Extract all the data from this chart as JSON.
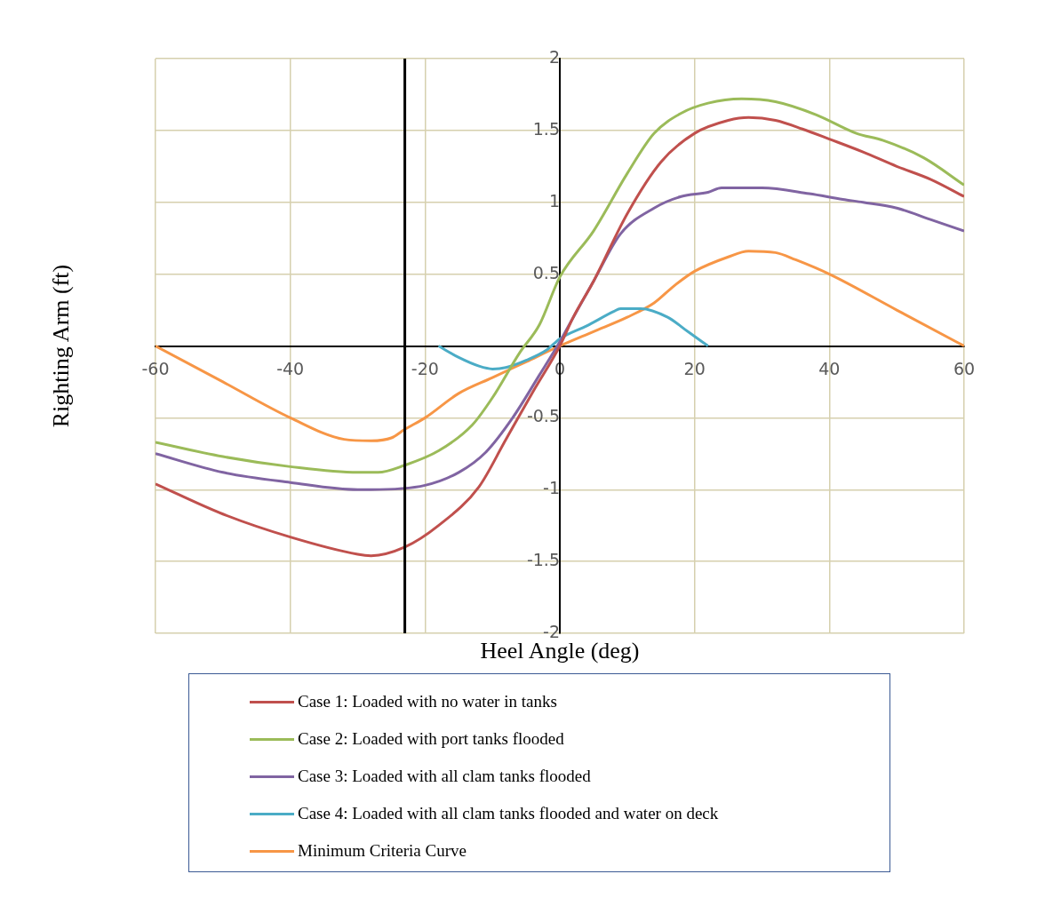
{
  "chart_data": {
    "type": "line",
    "xlabel": "Heel Angle (deg)",
    "ylabel": "Righting Arm (ft)",
    "xlim": [
      -60,
      60
    ],
    "xticks": [
      -60,
      -40,
      -20,
      0,
      20,
      40,
      60
    ],
    "ylim": [
      -2,
      2
    ],
    "yticks": [
      -2,
      -1.5,
      -1,
      -0.5,
      {
        "value": 0,
        "label": null
      },
      0.5,
      1,
      1.5,
      2
    ],
    "grid": true,
    "legend": "bottom",
    "marker": "none",
    "line_style": "solid",
    "ref_lines": [
      {
        "axis": "x",
        "value": -23,
        "color": "#000000"
      }
    ],
    "series": [
      {
        "name": "Case 1: Loaded with no water in tanks",
        "color": "#c0504d",
        "x": [
          -60,
          -50,
          -40,
          -30,
          -28,
          -23,
          -18,
          -12,
          -8,
          -4,
          0,
          2,
          5,
          10,
          15,
          20,
          25,
          28,
          32,
          36,
          40,
          45,
          50,
          55,
          60
        ],
        "values": [
          -0.96,
          -1.17,
          -1.33,
          -1.45,
          -1.46,
          -1.4,
          -1.25,
          -0.98,
          -0.65,
          -0.32,
          0,
          0.2,
          0.45,
          0.92,
          1.28,
          1.48,
          1.57,
          1.59,
          1.57,
          1.51,
          1.44,
          1.35,
          1.25,
          1.16,
          1.04
        ]
      },
      {
        "name": "Case 2: Loaded with port tanks flooded",
        "color": "#9bbb59",
        "x": [
          -60,
          -50,
          -40,
          -30,
          -27,
          -23,
          -18,
          -13,
          -10,
          -6,
          -3,
          0,
          5,
          10,
          14,
          18,
          22,
          27,
          32,
          38,
          44,
          48,
          54,
          60
        ],
        "values": [
          -0.67,
          -0.77,
          -0.84,
          -0.88,
          -0.88,
          -0.83,
          -0.73,
          -0.55,
          -0.36,
          -0.05,
          0.15,
          0.48,
          0.8,
          1.2,
          1.48,
          1.62,
          1.69,
          1.72,
          1.7,
          1.61,
          1.48,
          1.43,
          1.31,
          1.12
        ]
      },
      {
        "name": "Case 3: Loaded with all clam tanks flooded",
        "color": "#8064a2",
        "x": [
          -60,
          -50,
          -40,
          -30,
          -28,
          -20,
          -15,
          -11,
          -7,
          -3,
          0,
          2,
          5,
          9,
          14,
          18,
          22,
          24,
          30,
          37,
          42,
          45,
          50,
          55,
          60
        ],
        "values": [
          -0.75,
          -0.88,
          -0.95,
          -1,
          -1,
          -0.97,
          -0.88,
          -0.74,
          -0.5,
          -0.2,
          0.03,
          0.2,
          0.45,
          0.78,
          0.96,
          1.04,
          1.07,
          1.1,
          1.1,
          1.06,
          1.02,
          1,
          0.96,
          0.88,
          0.8
        ]
      },
      {
        "name": "Case 4: Loaded with all clam tanks flooded and water on deck",
        "color": "#4bacc6",
        "x": [
          -18,
          -15,
          -12,
          -10,
          -8,
          -5,
          -2,
          0,
          4,
          8,
          9,
          12,
          16,
          19,
          22
        ],
        "values": [
          0,
          -0.08,
          -0.14,
          -0.16,
          -0.15,
          -0.1,
          -0.03,
          0.05,
          0.14,
          0.24,
          0.26,
          0.26,
          0.2,
          0.1,
          0
        ]
      },
      {
        "name": "Minimum Criteria Curve",
        "color": "#f79646",
        "x": [
          -60,
          -50,
          -40,
          -32,
          -28,
          -25,
          -23,
          -20,
          -15,
          -10,
          -5,
          0,
          5,
          10,
          14,
          17,
          20,
          25,
          28,
          32,
          35,
          40,
          50,
          60
        ],
        "values": [
          0,
          -0.25,
          -0.5,
          -0.65,
          -0.66,
          -0.64,
          -0.58,
          -0.5,
          -0.33,
          -0.22,
          -0.11,
          0,
          0.1,
          0.2,
          0.3,
          0.42,
          0.52,
          0.62,
          0.66,
          0.65,
          0.6,
          0.5,
          0.25,
          0
        ]
      }
    ]
  }
}
